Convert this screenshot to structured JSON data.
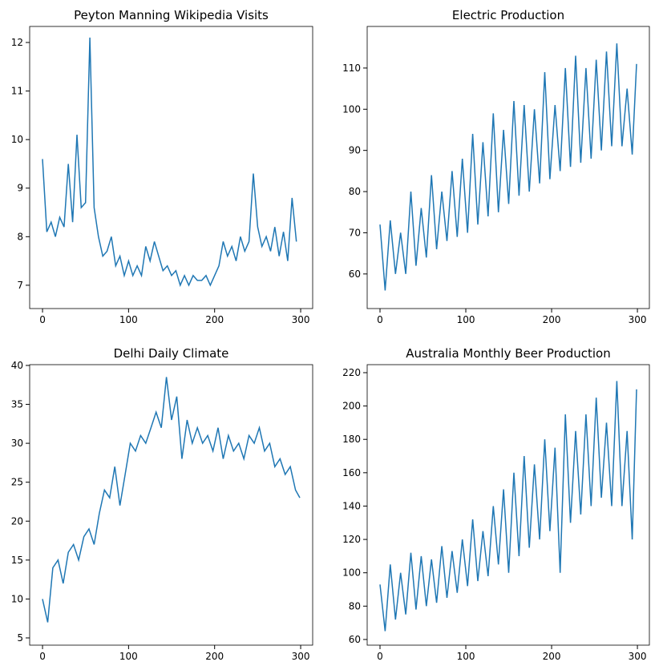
{
  "chart_data": [
    {
      "type": "line",
      "title": "Peyton Manning Wikipedia Visits",
      "color": "#1f77b4",
      "x": [
        0,
        5,
        10,
        15,
        20,
        25,
        30,
        35,
        40,
        45,
        50,
        55,
        60,
        65,
        70,
        75,
        80,
        85,
        90,
        95,
        100,
        105,
        110,
        115,
        120,
        125,
        130,
        135,
        140,
        145,
        150,
        155,
        160,
        165,
        170,
        175,
        180,
        185,
        190,
        195,
        200,
        205,
        210,
        215,
        220,
        225,
        230,
        235,
        240,
        245,
        250,
        255,
        260,
        265,
        270,
        275,
        280,
        285,
        290,
        295
      ],
      "values": [
        9.6,
        8.1,
        8.3,
        8.0,
        8.4,
        8.2,
        9.5,
        8.3,
        10.1,
        8.6,
        8.7,
        12.1,
        8.6,
        8.0,
        7.6,
        7.7,
        8.0,
        7.4,
        7.6,
        7.2,
        7.5,
        7.2,
        7.4,
        7.2,
        7.8,
        7.5,
        7.9,
        7.6,
        7.3,
        7.4,
        7.2,
        7.3,
        7.0,
        7.2,
        7.0,
        7.2,
        7.1,
        7.1,
        7.2,
        7.0,
        7.2,
        7.4,
        7.9,
        7.6,
        7.8,
        7.5,
        8.0,
        7.7,
        7.9,
        9.3,
        8.2,
        7.8,
        8.0,
        7.7,
        8.2,
        7.6,
        8.1,
        7.5,
        8.8,
        7.9
      ],
      "xlim": [
        -14.95,
        313.95
      ],
      "ylim": [
        6.52,
        12.33
      ],
      "xticks": [
        0,
        100,
        200,
        300
      ],
      "yticks": [
        7,
        8,
        9,
        10,
        11,
        12
      ]
    },
    {
      "type": "line",
      "title": "Electric Production",
      "color": "#1f77b4",
      "x": [
        0,
        6,
        12,
        18,
        24,
        30,
        36,
        42,
        48,
        54,
        60,
        66,
        72,
        78,
        84,
        90,
        96,
        102,
        108,
        114,
        120,
        126,
        132,
        138,
        144,
        150,
        156,
        162,
        168,
        174,
        180,
        186,
        192,
        198,
        204,
        210,
        216,
        222,
        228,
        234,
        240,
        246,
        252,
        258,
        264,
        270,
        276,
        282,
        288,
        294,
        299
      ],
      "values": [
        72,
        56,
        73,
        60,
        70,
        60,
        80,
        62,
        76,
        64,
        84,
        66,
        80,
        68,
        85,
        69,
        88,
        70,
        94,
        72,
        92,
        74,
        99,
        75,
        95,
        77,
        102,
        79,
        101,
        80,
        100,
        82,
        109,
        83,
        101,
        85,
        110,
        86,
        113,
        87,
        110,
        88,
        112,
        90,
        114,
        91,
        116,
        91,
        105,
        89,
        111
      ],
      "xlim": [
        -14.95,
        313.95
      ],
      "ylim": [
        51.6,
        120.1
      ],
      "xticks": [
        0,
        100,
        200,
        300
      ],
      "yticks": [
        60,
        70,
        80,
        90,
        100,
        110
      ]
    },
    {
      "type": "line",
      "title": "Delhi Daily Climate",
      "color": "#1f77b4",
      "x": [
        0,
        6,
        12,
        18,
        24,
        30,
        36,
        42,
        48,
        54,
        60,
        66,
        72,
        78,
        84,
        90,
        96,
        102,
        108,
        114,
        120,
        126,
        132,
        138,
        144,
        150,
        156,
        162,
        168,
        174,
        180,
        186,
        192,
        198,
        204,
        210,
        216,
        222,
        228,
        234,
        240,
        246,
        252,
        258,
        264,
        270,
        276,
        282,
        288,
        294,
        299
      ],
      "values": [
        10,
        7,
        14,
        15,
        12,
        16,
        17,
        15,
        18,
        19,
        17,
        21,
        24,
        23,
        27,
        22,
        26,
        30,
        29,
        31,
        30,
        32,
        34,
        32,
        38.5,
        33,
        36,
        28,
        33,
        30,
        32,
        30,
        31,
        29,
        32,
        28,
        31,
        29,
        30,
        28,
        31,
        30,
        32,
        29,
        30,
        27,
        28,
        26,
        27,
        24,
        23
      ],
      "xlim": [
        -14.95,
        313.95
      ],
      "ylim": [
        4.07,
        40.1
      ],
      "xticks": [
        0,
        100,
        200,
        300
      ],
      "yticks": [
        5,
        10,
        15,
        20,
        25,
        30,
        35,
        40
      ]
    },
    {
      "type": "line",
      "title": "Australia Monthly Beer Production",
      "color": "#1f77b4",
      "x": [
        0,
        6,
        12,
        18,
        24,
        30,
        36,
        42,
        48,
        54,
        60,
        66,
        72,
        78,
        84,
        90,
        96,
        102,
        108,
        114,
        120,
        126,
        132,
        138,
        144,
        150,
        156,
        162,
        168,
        174,
        180,
        186,
        192,
        198,
        204,
        210,
        216,
        222,
        228,
        234,
        240,
        246,
        252,
        258,
        264,
        270,
        276,
        282,
        288,
        294,
        299
      ],
      "values": [
        93,
        65,
        105,
        72,
        100,
        75,
        112,
        78,
        110,
        80,
        108,
        82,
        116,
        85,
        113,
        88,
        120,
        92,
        132,
        95,
        125,
        98,
        140,
        105,
        150,
        100,
        160,
        110,
        170,
        115,
        165,
        120,
        180,
        125,
        175,
        100,
        195,
        130,
        185,
        135,
        195,
        140,
        205,
        145,
        190,
        140,
        215,
        140,
        185,
        120,
        210
      ],
      "xlim": [
        -14.95,
        313.95
      ],
      "ylim": [
        56.6,
        224.8
      ],
      "xticks": [
        0,
        100,
        200,
        300
      ],
      "yticks": [
        60,
        80,
        100,
        120,
        140,
        160,
        180,
        200,
        220
      ]
    }
  ]
}
